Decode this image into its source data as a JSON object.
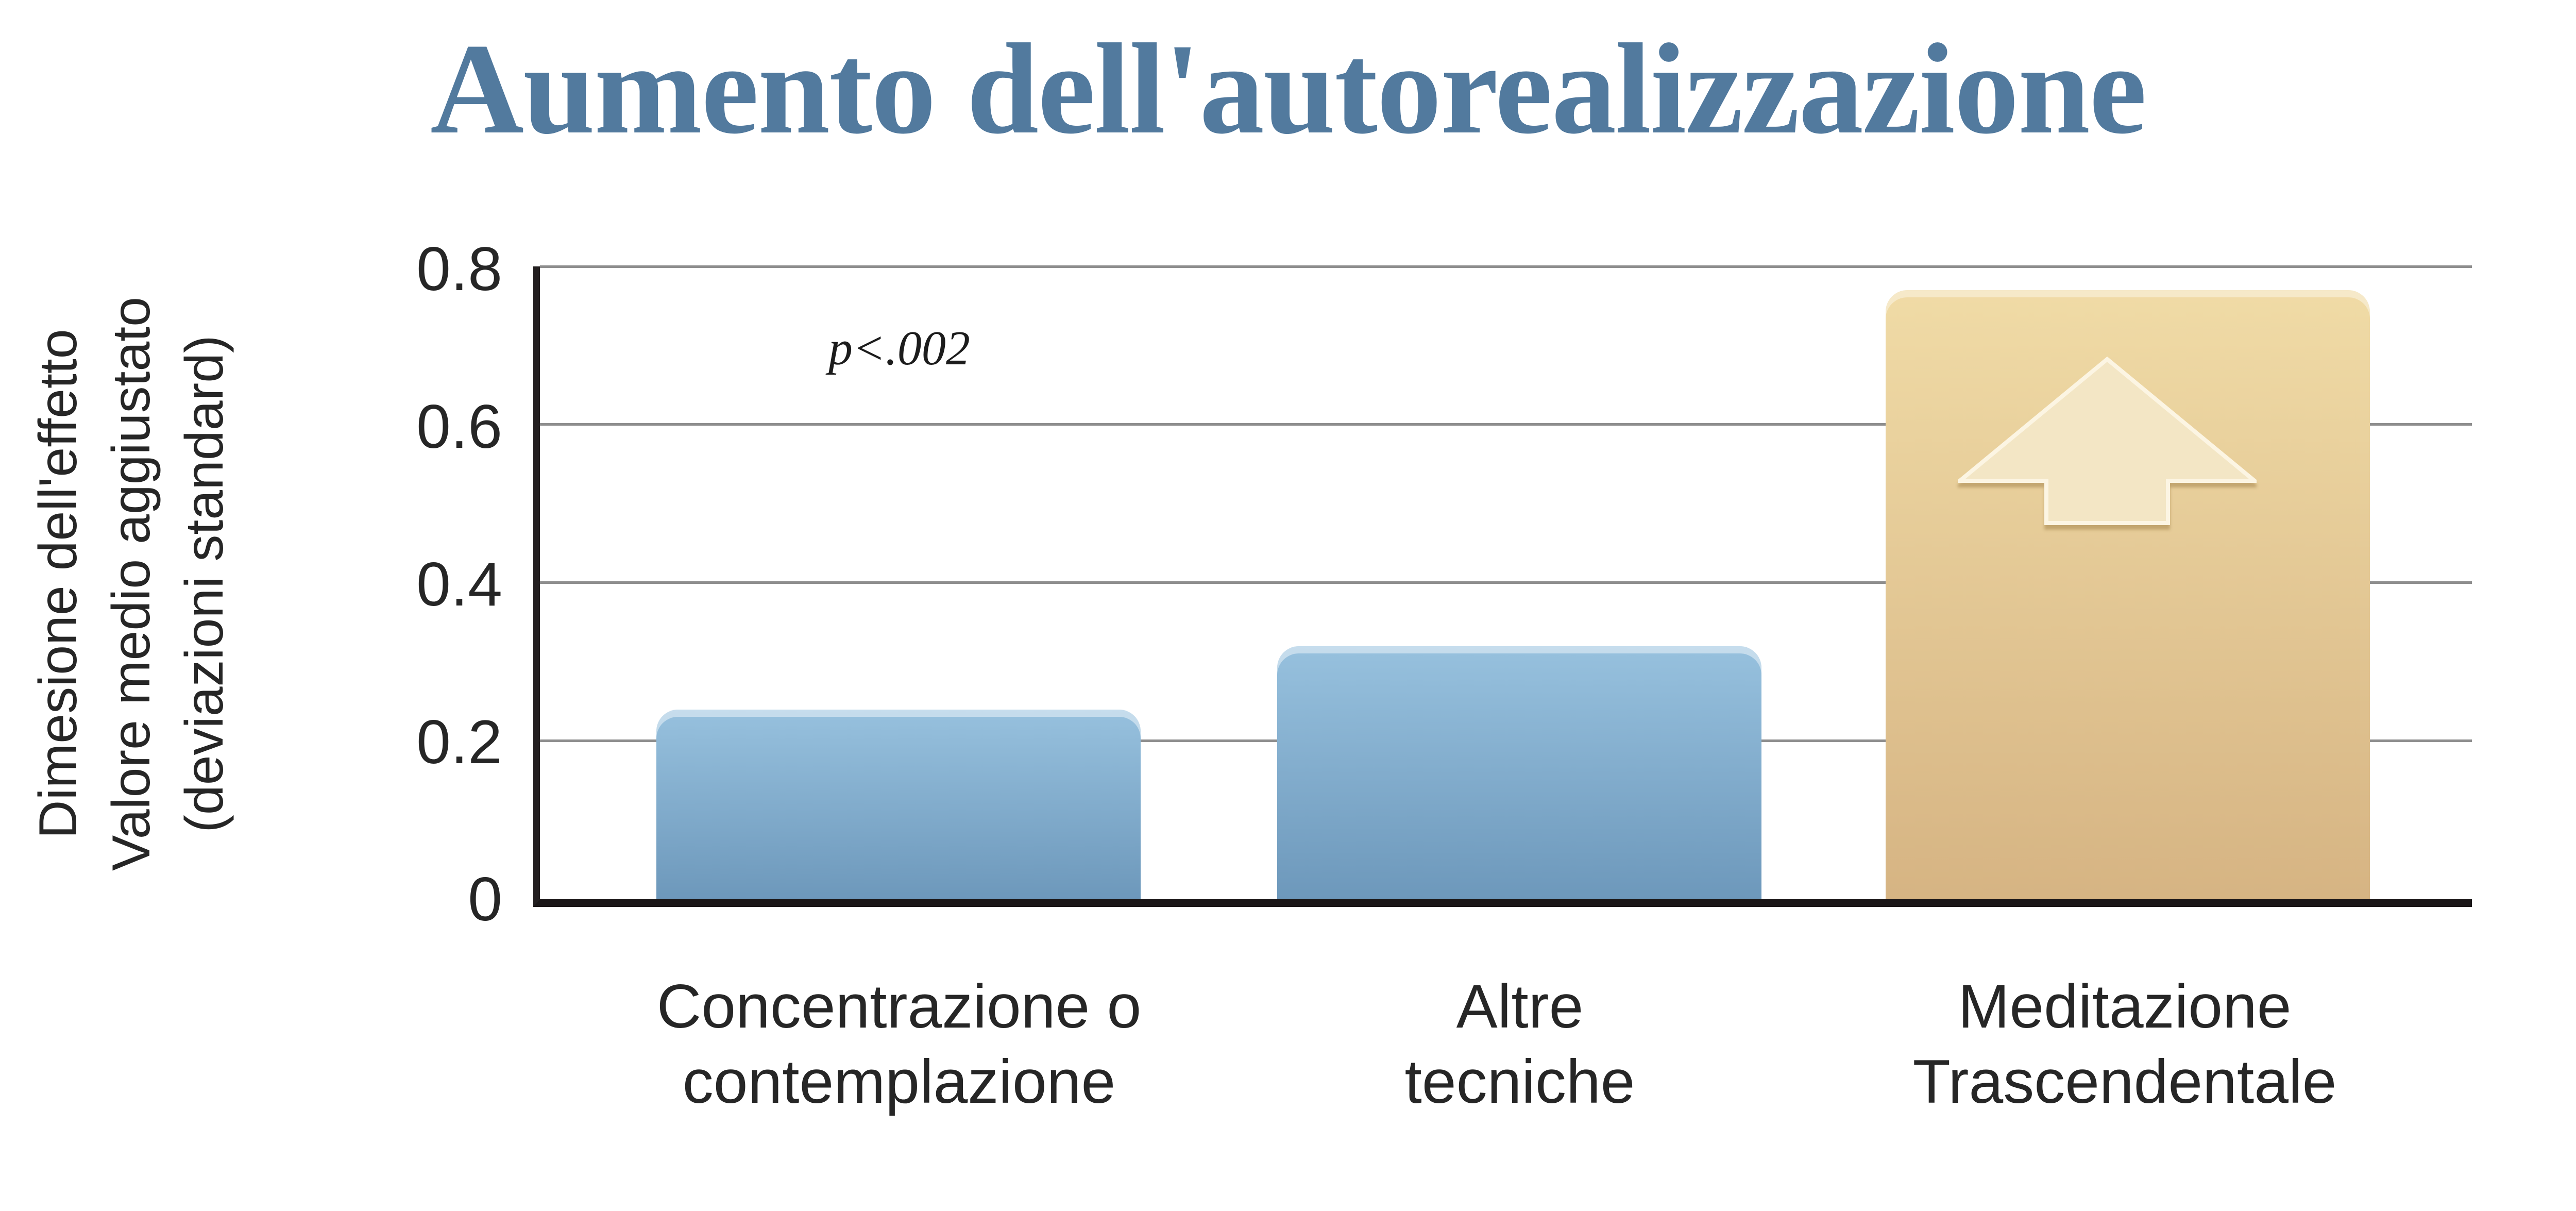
{
  "chart_data": {
    "type": "bar",
    "title": "Aumento dell'autorealizzazione",
    "categories": [
      "Concentrazione o\ncontemplazione",
      "Altre\ntecniche",
      "Meditazione\nTrascendentale"
    ],
    "values": [
      0.24,
      0.32,
      0.77
    ],
    "xlabel": "",
    "ylabel": "Dimesione dell'effetto\nValore medio aggiustato\n(deviazioni standard)",
    "ylim": [
      0,
      0.8
    ],
    "ytick_labels": [
      "0.8",
      "0.6",
      "0.4",
      "0.2",
      "0"
    ],
    "grid": true,
    "legend": "none",
    "annotation": "p<.002",
    "bar_styles": [
      {
        "top": "#97c1de",
        "bottom": "#6d98bb"
      },
      {
        "top": "#97c1de",
        "bottom": "#6d98bb"
      },
      {
        "top": "#f0dba6",
        "bottom": "#d6b483"
      }
    ],
    "colors": {
      "title": "#527a9e",
      "axis_line": "#231f20",
      "gridline": "#8e8e8e",
      "text": "#262626",
      "arrow_fill": "#f3e6c5",
      "arrow_outline": "#fcf5e3"
    }
  }
}
